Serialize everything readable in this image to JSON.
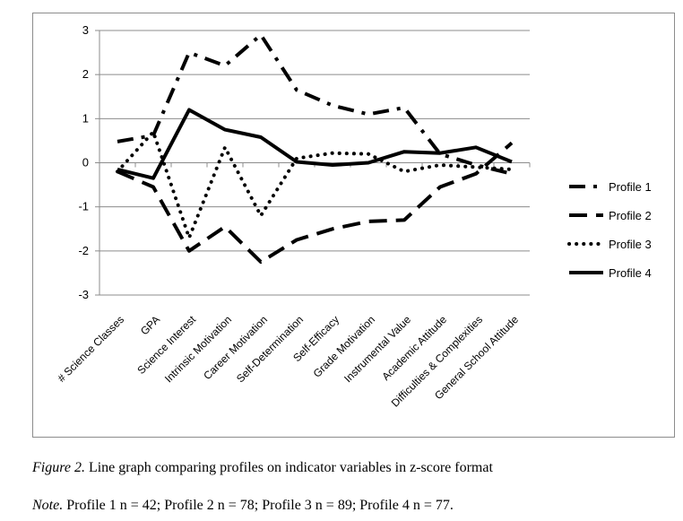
{
  "chart_data": {
    "type": "line",
    "categories": [
      "# Science Classes",
      "GPA",
      "Science Interest",
      "Intrinsic Motivation",
      "Career Motivation",
      "Self-Determination",
      "Self-Efficacy",
      "Grade Motivation",
      "Instrumental Value",
      "Academic Attitude",
      "Difficulties & Complexities",
      "General School Attitude"
    ],
    "ylim": [
      -3,
      3
    ],
    "yticks": [
      "3",
      "2",
      "1",
      "0",
      "-1",
      "-2",
      "-3"
    ],
    "grid": true,
    "legend_position": "right",
    "series": [
      {
        "name": "Profile 1",
        "style": "dash-dot",
        "values": [
          0.48,
          0.62,
          2.5,
          2.2,
          2.9,
          1.65,
          1.3,
          1.1,
          1.25,
          0.2,
          -0.05,
          -0.25
        ]
      },
      {
        "name": "Profile 2",
        "style": "long-dash",
        "values": [
          -0.2,
          -0.55,
          -2.0,
          -1.45,
          -2.25,
          -1.75,
          -1.5,
          -1.33,
          -1.3,
          -0.55,
          -0.25,
          0.45
        ]
      },
      {
        "name": "Profile 3",
        "style": "dotted",
        "values": [
          -0.2,
          0.7,
          -1.7,
          0.35,
          -1.2,
          0.1,
          0.22,
          0.2,
          -0.2,
          -0.05,
          -0.1,
          -0.15
        ]
      },
      {
        "name": "Profile 4",
        "style": "solid",
        "values": [
          -0.15,
          -0.35,
          1.2,
          0.75,
          0.58,
          0.02,
          -0.05,
          0.0,
          0.25,
          0.22,
          0.35,
          0.02
        ]
      }
    ]
  },
  "caption": {
    "figure_label": "Figure 2.",
    "figure_text": " Line graph comparing profiles on indicator variables in z-score format",
    "note_label": "Note.",
    "note_text": " Profile 1 n = 42; Profile 2 n = 78; Profile 3 n = 89; Profile 4 n = 77."
  }
}
